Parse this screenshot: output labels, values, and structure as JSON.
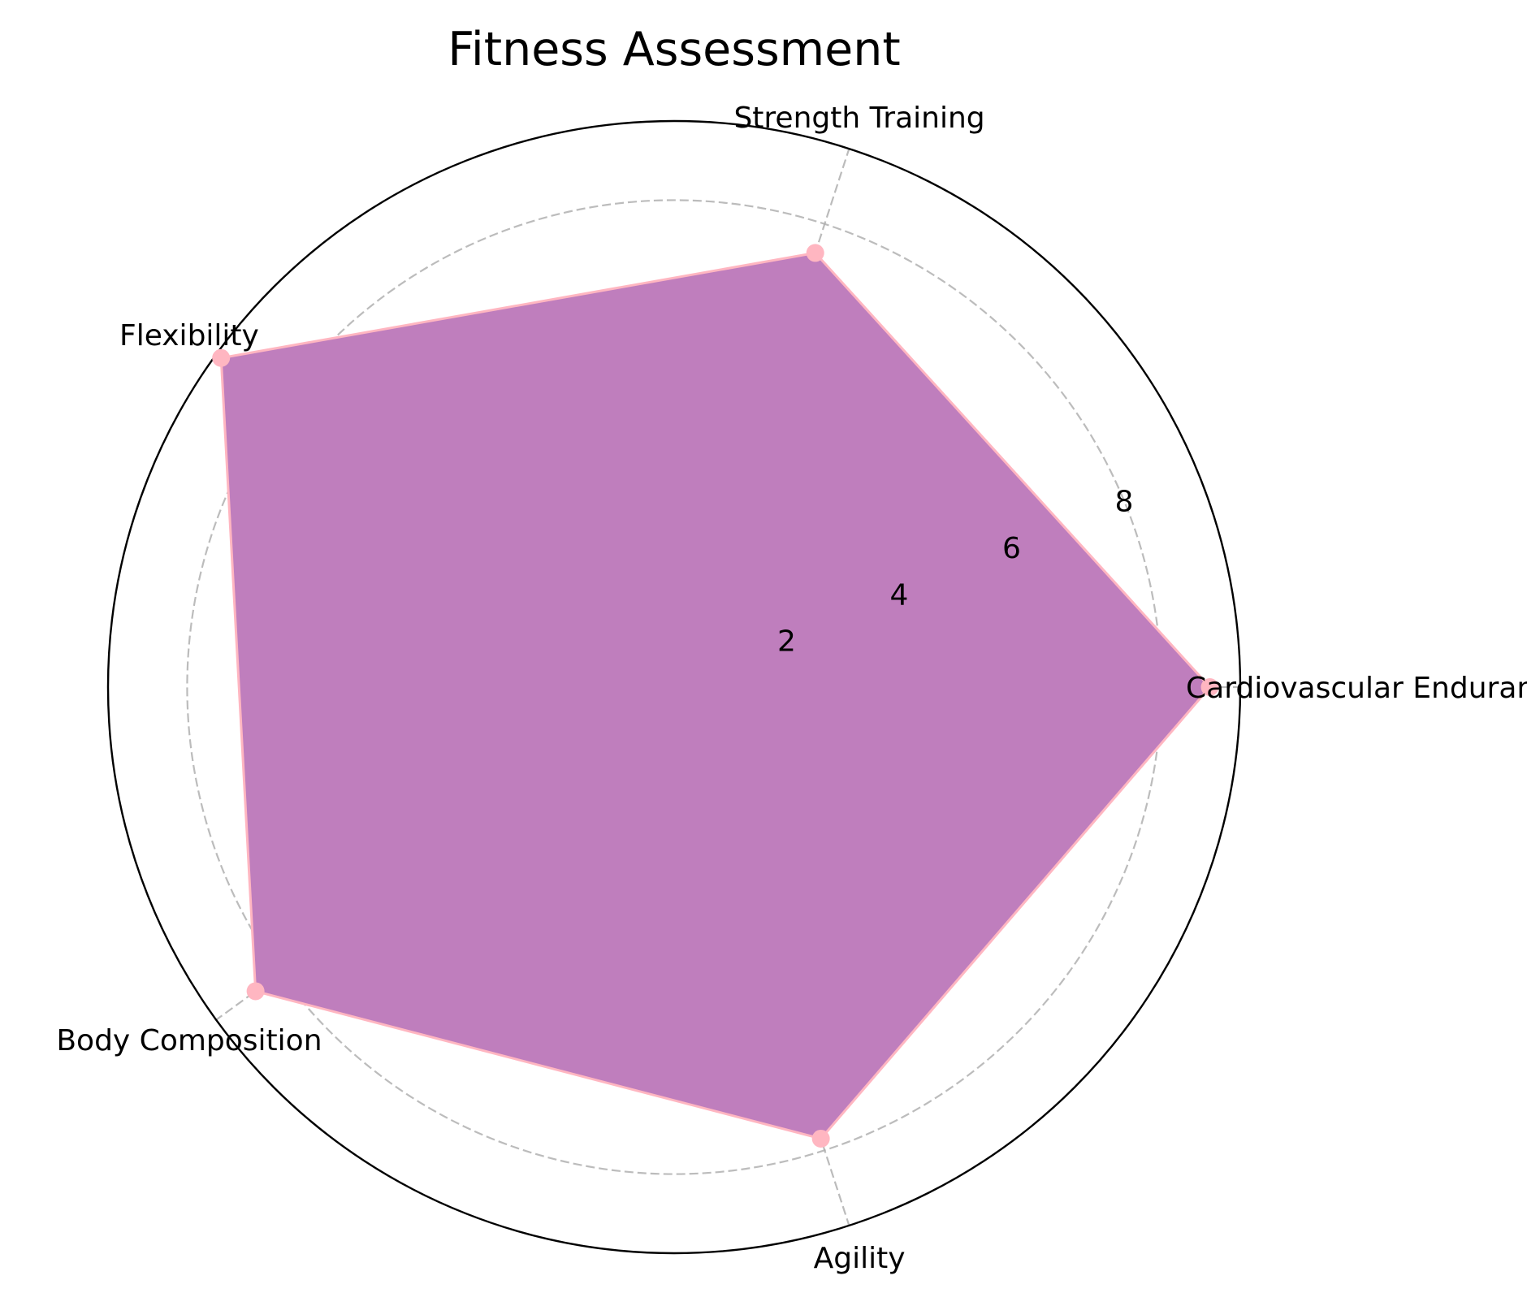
{
  "chart_data": {
    "type": "radar",
    "title": "Fitness Assessment",
    "categories": [
      "Cardiovascular Endurance",
      "Strength Training",
      "Flexibility",
      "Body Composition",
      "Agility"
    ],
    "series": [
      {
        "values": [
          8.8,
          7.5,
          9.2,
          8.5,
          7.8
        ]
      }
    ],
    "rlim": [
      0,
      9.3
    ],
    "radial_ticks": [
      2,
      4,
      6,
      8
    ],
    "radial_tick_labels": [
      "2",
      "4",
      "6",
      "8"
    ],
    "grid": true,
    "grid_style": "dashed",
    "colors": {
      "fill": "#bf7ebd",
      "line": "#ffb6c1",
      "marker": "#ffb6c1",
      "grid": "#b0b0b0",
      "frame": "#000000"
    }
  }
}
